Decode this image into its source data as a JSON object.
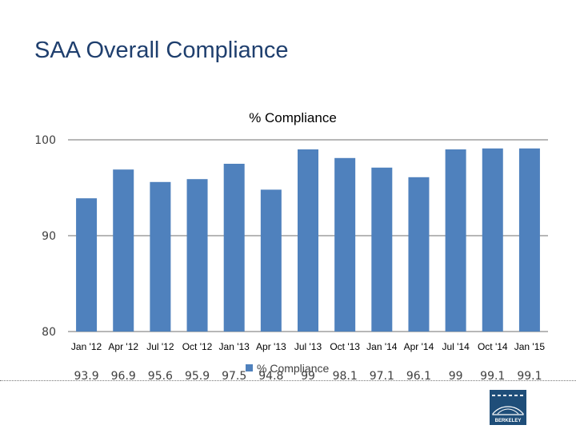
{
  "slide": {
    "title": "SAA Overall Compliance",
    "logo_text": "BERKELEY LAB"
  },
  "colors": {
    "title": "#1f3f6e",
    "bar": "#4f81bd",
    "axis_text": "#404040",
    "logo_bg": "#1f4e79"
  },
  "chart_data": {
    "type": "bar",
    "title": "% Compliance",
    "categories": [
      "Jan '12",
      "Apr '12",
      "Jul '12",
      "Oct '12",
      "Jan '13",
      "Apr '13",
      "Jul '13",
      "Oct '13",
      "Jan '14",
      "Apr '14",
      "Jul '14",
      "Oct '14",
      "Jan '15"
    ],
    "series": [
      {
        "name": "% Compliance",
        "values": [
          93.9,
          96.9,
          95.6,
          95.9,
          97.5,
          94.8,
          99,
          98.1,
          97.1,
          96.1,
          99,
          99.1,
          99.1
        ]
      }
    ],
    "value_labels": [
      "93.9",
      "96.9",
      "95.6",
      "95.9",
      "97.5",
      "94.8",
      "99",
      "98.1",
      "97.1",
      "96.1",
      "99",
      "99.1",
      "99.1"
    ],
    "ylim": [
      80,
      100
    ],
    "yticks": [
      "80",
      "90",
      "100"
    ],
    "grid": true,
    "legend": "bottom"
  }
}
